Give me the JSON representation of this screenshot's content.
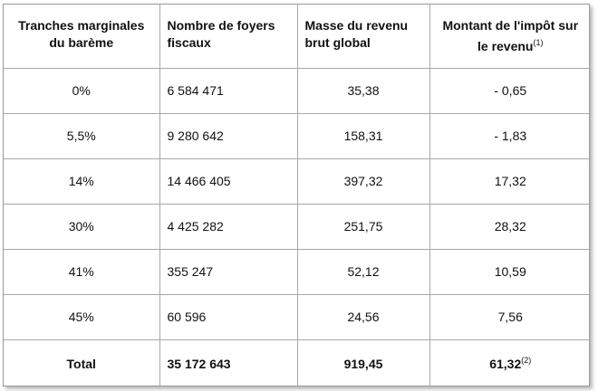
{
  "table": {
    "headers": [
      "Tranches marginales du barème",
      "Nombre de foyers fiscaux",
      "Masse du revenu brut global",
      "Montant de l'impôt sur le revenu"
    ],
    "header_note": "(1)",
    "rows": [
      [
        "0%",
        "6 584 471",
        "35,38",
        "- 0,65"
      ],
      [
        "5,5%",
        "9 280 642",
        "158,31",
        "- 1,83"
      ],
      [
        "14%",
        "14 466 405",
        "397,32",
        "17,32"
      ],
      [
        "30%",
        "4 425 282",
        "251,75",
        "28,32"
      ],
      [
        "41%",
        "355 247",
        "52,12",
        "10,59"
      ],
      [
        "45%",
        "60 596",
        "24,56",
        "7,56"
      ]
    ],
    "total": [
      "Total",
      "35 172 643",
      "919,45",
      "61,32"
    ],
    "total_note": "(2)"
  }
}
